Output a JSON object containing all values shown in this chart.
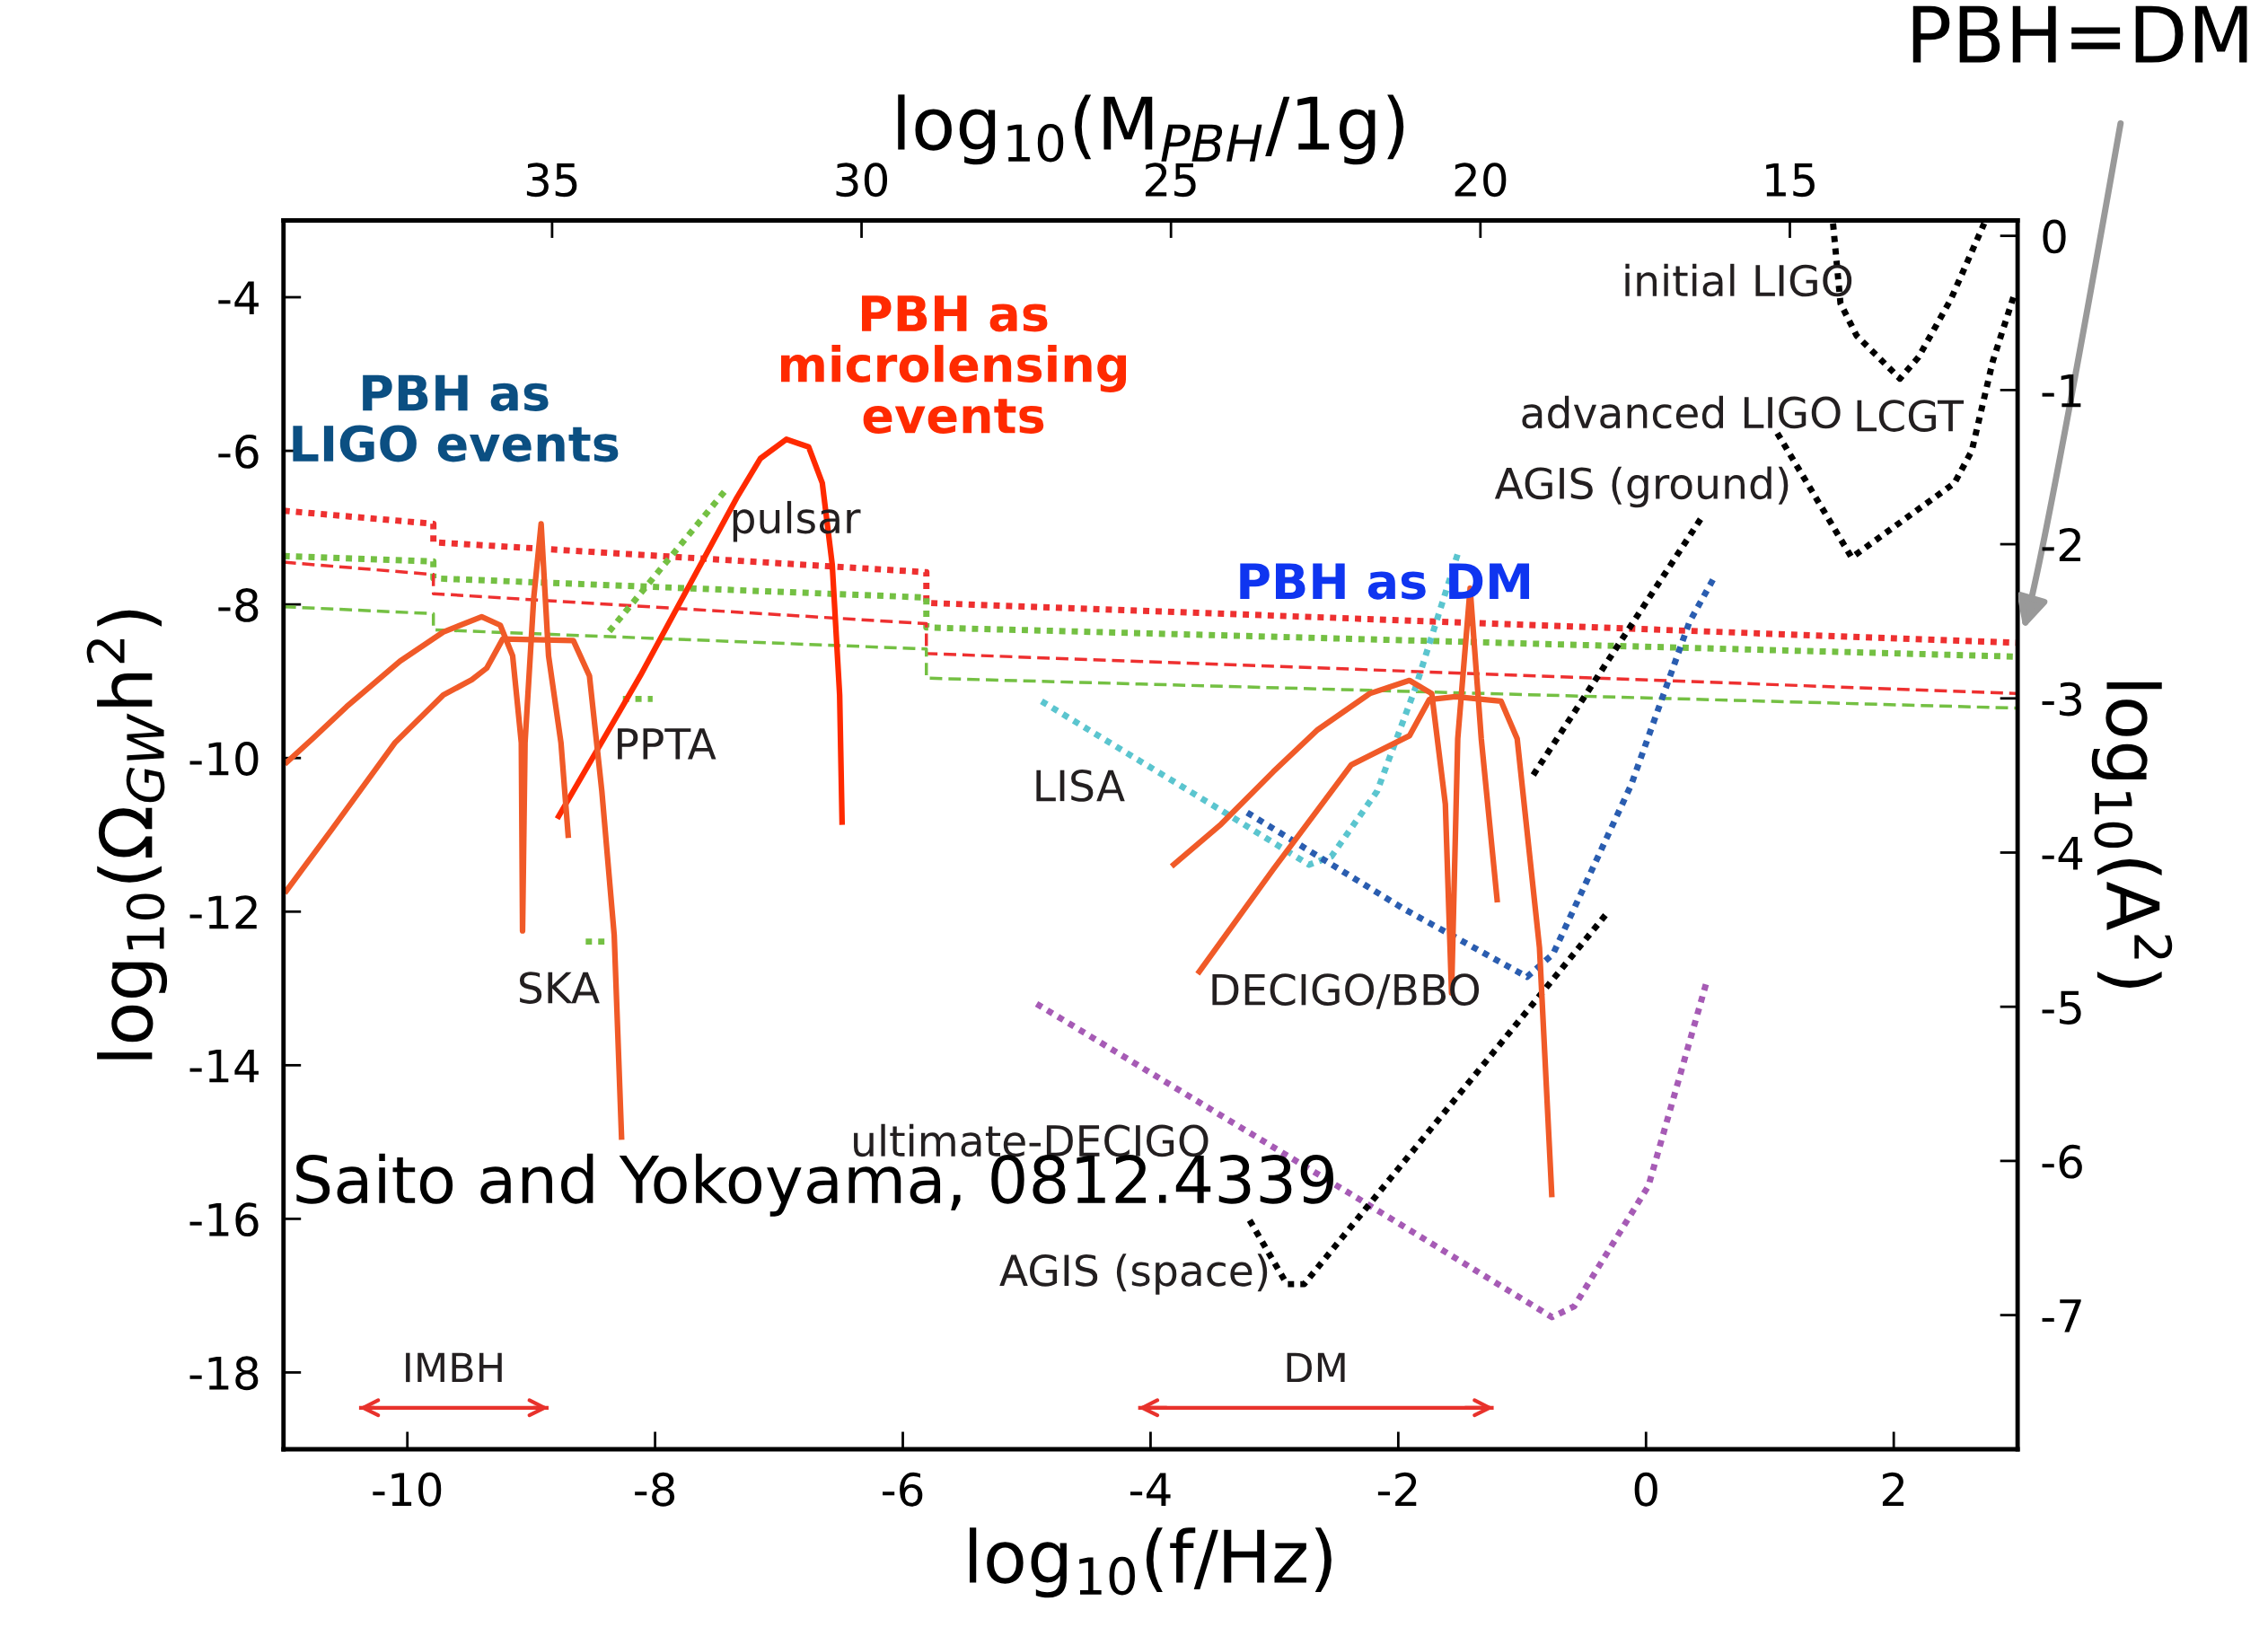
{
  "chart_data": {
    "type": "line",
    "xlabel": "log$_{10}$(f/Hz)",
    "ylabel": "log$_{10}$(Ω$_{GW}$h$^{2}$)",
    "y2label": "log$_{10}$(A$^{2}$)",
    "x2label": "log$_{10}$(M$_{PBH}$/1g)",
    "xlim": [
      -11,
      3
    ],
    "xticks": [
      -10,
      -8,
      -6,
      -4,
      -2,
      0,
      2
    ],
    "ylim": [
      -19,
      -3
    ],
    "yticks": [
      -4,
      -6,
      -8,
      -10,
      -12,
      -14,
      -16,
      -18
    ],
    "y2lim": [
      -7.87,
      0.1
    ],
    "y2ticks": [
      0,
      -1,
      -2,
      -3,
      -4,
      -5,
      -6,
      -7
    ],
    "x2lim": [
      39.34,
      11.32
    ],
    "x2ticks": [
      35,
      30,
      25,
      20,
      15
    ],
    "grid": false,
    "series": [
      {
        "line_style": "dotted",
        "color": "#ee3030",
        "x": [
          -11,
          -9.79,
          -9.79,
          -5.81,
          -5.81,
          3
        ],
        "values": [
          -6.78,
          -6.95,
          -7.19,
          -7.58,
          -7.98,
          -8.5
        ]
      },
      {
        "line_style": "dotted",
        "color": "#74c043",
        "x": [
          -11,
          -9.79,
          -9.79,
          -5.81,
          -5.81,
          3
        ],
        "values": [
          -7.37,
          -7.44,
          -7.66,
          -7.91,
          -8.3,
          -8.68
        ]
      },
      {
        "line_style": "dashed",
        "color": "#ee3030",
        "x": [
          -11,
          -9.79,
          -9.79,
          -5.81,
          -5.81,
          3
        ],
        "values": [
          -7.45,
          -7.61,
          -7.86,
          -8.25,
          -8.64,
          -9.16
        ]
      },
      {
        "line_style": "dashed",
        "color": "#74c043",
        "x": [
          -11,
          -9.79,
          -9.79,
          -5.81,
          -5.81,
          3
        ],
        "values": [
          -8.03,
          -8.12,
          -8.33,
          -8.58,
          -8.96,
          -9.35
        ]
      },
      {
        "line_style": "dotted",
        "color": "#74c043",
        "x": [
          -8.37,
          -7.44
        ],
        "values": [
          -8.35,
          -6.53
        ]
      },
      {
        "line_style": "dotted",
        "color": "#74c043",
        "x": [
          -8.26,
          -8.02
        ],
        "values": [
          -9.23,
          -9.23
        ]
      },
      {
        "line_style": "dotted",
        "color": "#74c043",
        "x": [
          -8.56,
          -8.37
        ],
        "values": [
          -12.39,
          -12.39
        ]
      },
      {
        "line_style": "dotted",
        "color": "#5bc5cf",
        "x": [
          -4.88,
          -3.38,
          -2.72,
          -2.54,
          -2.17,
          -1.86,
          -1.52
        ],
        "values": [
          -9.26,
          -10.73,
          -11.39,
          -11.28,
          -10.43,
          -9.08,
          -7.34
        ]
      },
      {
        "line_style": "dotted",
        "color": "#2a5db0",
        "x": [
          -3.22,
          -1.96,
          -0.96,
          -0.75,
          -0.12,
          0.35,
          0.56
        ],
        "values": [
          -10.71,
          -11.96,
          -12.85,
          -12.55,
          -10.35,
          -8.23,
          -7.62
        ]
      },
      {
        "line_style": "dotted",
        "color": "#a65bb5",
        "x": [
          -4.92,
          -2.34,
          -0.76,
          -0.58,
          0.02,
          0.49
        ],
        "values": [
          -13.2,
          -15.72,
          -17.28,
          -17.14,
          -15.57,
          -12.91
        ]
      },
      {
        "line_style": "dotted",
        "color": "#000000",
        "x": [
          -3.2,
          -2.9,
          -2.76,
          -0.3
        ],
        "values": [
          -16.02,
          -16.85,
          -16.85,
          -11.99
        ]
      },
      {
        "line_style": "dotted",
        "color": "#000000",
        "x": [
          -0.91,
          0.44
        ],
        "values": [
          -10.22,
          -6.89
        ]
      },
      {
        "line_style": "dotted",
        "color": "#000000",
        "x": [
          1.06,
          1.66,
          2.49,
          2.63,
          2.8,
          2.98
        ],
        "values": [
          -5.77,
          -7.39,
          -6.42,
          -6.0,
          -4.83,
          -3.93
        ]
      },
      {
        "line_style": "dotted",
        "color": "#000000",
        "x": [
          1.51,
          1.57,
          1.7,
          2.05,
          2.2,
          2.46,
          2.73
        ],
        "values": [
          -3.04,
          -4.08,
          -4.5,
          -5.06,
          -4.78,
          -4.03,
          -3.04
        ]
      },
      {
        "line_style": "solid",
        "color": "#ff2a00",
        "x": [
          -8.79,
          -8.12,
          -7.34,
          -7.15,
          -6.94,
          -6.76,
          -6.65,
          -6.57,
          -6.51,
          -6.49
        ],
        "values": [
          -10.79,
          -8.93,
          -6.61,
          -6.1,
          -5.85,
          -5.95,
          -6.42,
          -7.48,
          -9.18,
          -10.87
        ]
      },
      {
        "line_style": "solid",
        "color": "#f05a28",
        "x": [
          -10.99,
          -10.76,
          -10.49,
          -10.06,
          -9.71,
          -9.4,
          -9.25,
          -9.15,
          -9.08,
          -9.07,
          -9.05,
          -8.98,
          -8.92,
          -8.86,
          -8.76,
          -8.7
        ],
        "values": [
          -10.08,
          -9.74,
          -9.33,
          -8.74,
          -8.36,
          -8.16,
          -8.27,
          -8.67,
          -9.8,
          -12.25,
          -9.8,
          -7.92,
          -6.95,
          -8.67,
          -9.8,
          -11.04
        ]
      },
      {
        "line_style": "solid",
        "color": "#f05a28",
        "x": [
          -10.99,
          -10.61,
          -10.1,
          -9.71,
          -9.48,
          -9.36,
          -9.23,
          -8.66,
          -8.53,
          -8.43,
          -8.33,
          -8.27
        ],
        "values": [
          -11.76,
          -10.93,
          -9.8,
          -9.18,
          -8.98,
          -8.83,
          -8.45,
          -8.47,
          -8.93,
          -10.43,
          -12.31,
          -14.97
        ]
      },
      {
        "line_style": "solid",
        "color": "#f05a28",
        "x": [
          -3.83,
          -3.43,
          -3.01,
          -2.65,
          -2.23,
          -1.91,
          -1.73,
          -1.62,
          -1.57,
          -1.52,
          -1.42,
          -1.33,
          -1.2
        ],
        "values": [
          -11.41,
          -10.86,
          -10.18,
          -9.63,
          -9.16,
          -8.99,
          -9.16,
          -10.6,
          -13.06,
          -9.75,
          -7.79,
          -9.75,
          -11.88
        ]
      },
      {
        "line_style": "solid",
        "color": "#f05a28",
        "x": [
          -3.62,
          -3.01,
          -2.38,
          -1.91,
          -1.75,
          -1.54,
          -1.17,
          -1.04,
          -0.86,
          -0.76
        ],
        "values": [
          -12.81,
          -11.45,
          -10.09,
          -9.71,
          -9.24,
          -9.2,
          -9.26,
          -9.75,
          -12.47,
          -15.72
        ]
      },
      {
        "name": "IMBH",
        "line_style": "solid",
        "color": "#e8322c",
        "x": [
          -10.39,
          -8.86
        ],
        "values": [
          -18.46,
          -18.46
        ]
      },
      {
        "name": "DM",
        "line_style": "solid",
        "color": "#e8322c",
        "x": [
          -4.1,
          -1.23
        ],
        "values": [
          -18.46,
          -18.46
        ]
      }
    ],
    "annotations": [
      "PBH as\nLIGO events",
      "PBH as\nmicrolensing\nevents",
      "PBH as DM",
      "pulsar",
      "PPTA",
      "SKA",
      "LISA",
      "DECIGO/BBO",
      "ultimate-DECIGO",
      "AGIS (space)",
      "AGIS (ground)",
      "advanced LIGO",
      "LCGT",
      "initial LIGO",
      "Saito and Yokoyama, 0812.4339",
      "PBH=DM"
    ]
  }
}
